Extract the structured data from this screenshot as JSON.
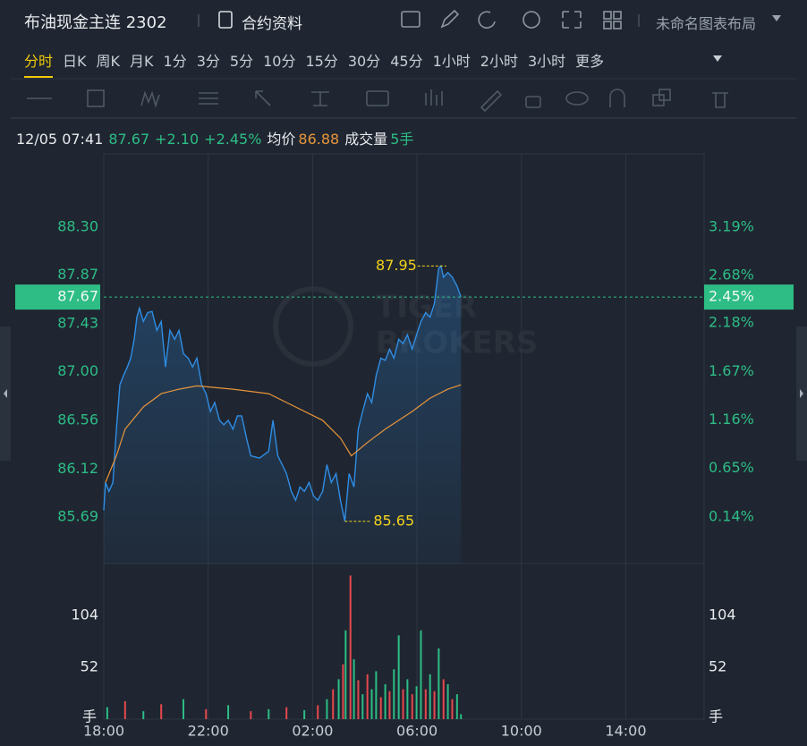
{
  "header": {
    "title": "布油现金主连 2302",
    "contract_info": "合约资料",
    "layout_name": "未命名图表布局"
  },
  "timeframes": {
    "items": [
      "分时",
      "日K",
      "周K",
      "月K",
      "1分",
      "3分",
      "5分",
      "10分",
      "15分",
      "30分",
      "45分",
      "1小时",
      "2小时",
      "3小时",
      "更多"
    ],
    "active": 0
  },
  "quote": {
    "datetime": "12/05 07:41",
    "price": "87.67",
    "change": "+2.10",
    "change_pct": "+2.45%",
    "avg_label": "均价",
    "avg": "86.88",
    "volume_label": "成交量",
    "volume": "5手"
  },
  "chart_data": {
    "type": "line",
    "xlim": [
      "18:00",
      "17:00"
    ],
    "xticks": [
      "18:00",
      "22:00",
      "02:00",
      "06:00",
      "10:00",
      "14:00"
    ],
    "ylim": [
      85.27,
      88.96
    ],
    "yticks": [
      {
        "value": 88.3,
        "label": "88.30"
      },
      87.87,
      87.43,
      {
        "value": 87.0,
        "label": "87.00"
      },
      86.56,
      86.12,
      85.69
    ],
    "y2lim": [
      -0.35,
      3.96
    ],
    "y2ticks": [
      {
        "value": 3.19,
        "label": "3.19%"
      },
      {
        "value": 2.68,
        "label": "2.68%"
      },
      {
        "value": 2.18,
        "label": "2.18%"
      },
      {
        "value": 1.67,
        "label": "1.67%"
      },
      {
        "value": 1.16,
        "label": "1.16%"
      },
      {
        "value": 0.65,
        "label": "0.65%"
      },
      {
        "value": 0.14,
        "label": "0.14%"
      }
    ],
    "grid": "x",
    "watermark": [
      "TIGER",
      "BROKERS"
    ],
    "series": [
      {
        "color": "#2f8de4",
        "fill": true,
        "x": [
          "18:00",
          "18:04",
          "18:12",
          "18:21",
          "18:29",
          "18:37",
          "18:45",
          "18:54",
          "19:02",
          "19:10",
          "19:16",
          "19:22",
          "19:31",
          "19:41",
          "19:51",
          "20:02",
          "20:12",
          "20:22",
          "20:32",
          "20:43",
          "20:53",
          "21:03",
          "21:14",
          "21:24",
          "21:34",
          "21:45",
          "21:55",
          "22:05",
          "22:15",
          "22:26",
          "22:36",
          "22:46",
          "22:57",
          "23:07",
          "23:17",
          "23:28",
          "23:38",
          "23:58",
          "00:19",
          "00:29",
          "00:40",
          "00:50",
          "01:00",
          "01:11",
          "01:21",
          "01:31",
          "01:41",
          "01:52",
          "02:02",
          "02:12",
          "02:23",
          "02:33",
          "02:43",
          "02:54",
          "03:04",
          "03:14",
          "03:24",
          "03:35",
          "03:45",
          "03:55",
          "04:06",
          "04:16",
          "04:26",
          "04:37",
          "04:47",
          "04:57",
          "05:07",
          "05:18",
          "05:28",
          "05:38",
          "05:49",
          "05:59",
          "06:09",
          "06:20",
          "06:30",
          "06:40",
          "06:50",
          "06:55",
          "07:01",
          "07:11",
          "07:21",
          "07:32",
          "07:41"
        ],
        "values": [
          85.75,
          86.0,
          85.92,
          86.0,
          86.48,
          86.88,
          86.96,
          87.04,
          87.12,
          87.29,
          87.49,
          87.57,
          87.45,
          87.53,
          87.54,
          87.37,
          87.45,
          87.04,
          87.37,
          87.29,
          87.37,
          87.16,
          87.12,
          87.04,
          87.12,
          86.88,
          86.8,
          86.64,
          86.72,
          86.56,
          86.52,
          86.56,
          86.48,
          86.6,
          86.6,
          86.4,
          86.24,
          86.22,
          86.28,
          86.56,
          86.24,
          86.16,
          86.08,
          85.92,
          85.84,
          85.96,
          85.92,
          86.0,
          85.88,
          85.84,
          85.92,
          86.16,
          86.0,
          86.08,
          85.84,
          85.65,
          86.08,
          85.96,
          86.48,
          86.64,
          86.8,
          86.72,
          86.96,
          87.12,
          87.1,
          87.2,
          87.12,
          87.29,
          87.25,
          87.33,
          87.2,
          87.33,
          87.45,
          87.53,
          87.49,
          87.61,
          87.93,
          87.95,
          87.85,
          87.89,
          87.85,
          87.77,
          87.67
        ]
      },
      {
        "color": "#e8953a",
        "fill": false,
        "x": [
          "18:04",
          "18:29",
          "18:49",
          "19:31",
          "20:12",
          "20:53",
          "21:34",
          "22:57",
          "00:19",
          "01:21",
          "02:23",
          "03:04",
          "03:29",
          "04:06",
          "04:47",
          "05:49",
          "06:30",
          "07:11",
          "07:41"
        ],
        "values": [
          86.0,
          86.24,
          86.48,
          86.68,
          86.8,
          86.84,
          86.87,
          86.84,
          86.8,
          86.68,
          86.56,
          86.4,
          86.24,
          86.36,
          86.48,
          86.64,
          86.76,
          86.84,
          86.88
        ]
      }
    ],
    "last": {
      "value": 87.67,
      "pct": {
        "value": 2.45,
        "label": "2.45%"
      },
      "color": "#2dbd85"
    },
    "max": {
      "x": "06:55",
      "value": 87.95
    },
    "min": {
      "x": "03:14",
      "value": 85.65
    },
    "annotation_color": "#f2d21b",
    "volume": {
      "type": "bar",
      "ylim": [
        0,
        156
      ],
      "yticks": [
        52,
        104
      ],
      "unit": "手",
      "x": [
        "18:08",
        "18:49",
        "19:31",
        "20:12",
        "21:03",
        "21:55",
        "22:46",
        "23:38",
        "00:19",
        "01:00",
        "01:41",
        "02:12",
        "02:33",
        "02:47",
        "03:00",
        "03:10",
        "03:16",
        "03:27",
        "03:35",
        "03:45",
        "03:55",
        "04:06",
        "04:16",
        "04:26",
        "04:37",
        "04:47",
        "04:57",
        "05:07",
        "05:18",
        "05:28",
        "05:38",
        "05:49",
        "05:59",
        "06:09",
        "06:20",
        "06:30",
        "06:40",
        "06:50",
        "07:01",
        "07:11",
        "07:21",
        "07:32",
        "07:41"
      ],
      "values": [
        12,
        18,
        8,
        15,
        20,
        10,
        14,
        8,
        10,
        12,
        9,
        14,
        20,
        30,
        40,
        55,
        89,
        144,
        60,
        39,
        25,
        45,
        30,
        48,
        22,
        35,
        28,
        50,
        84,
        30,
        40,
        25,
        33,
        89,
        30,
        45,
        28,
        71,
        40,
        35,
        20,
        25,
        5
      ],
      "colors": [
        "#2dbd85",
        "#e5484d",
        "#2dbd85",
        "#e5484d",
        "#2dbd85",
        "#e5484d",
        "#2dbd85",
        "#e5484d",
        "#2dbd85",
        "#e5484d",
        "#2dbd85",
        "#e5484d",
        "#2dbd85",
        "#e5484d",
        "#2dbd85",
        "#e5484d",
        "#2dbd85",
        "#e5484d",
        "#2dbd85",
        "#e5484d",
        "#2dbd85",
        "#e5484d",
        "#2dbd85",
        "#2dbd85",
        "#e5484d",
        "#2dbd85",
        "#e5484d",
        "#2dbd85",
        "#2dbd85",
        "#e5484d",
        "#2dbd85",
        "#e5484d",
        "#2dbd85",
        "#2dbd85",
        "#e5484d",
        "#2dbd85",
        "#e5484d",
        "#2dbd85",
        "#e5484d",
        "#2dbd85",
        "#e5484d",
        "#2dbd85",
        "#2dbd85"
      ]
    }
  }
}
